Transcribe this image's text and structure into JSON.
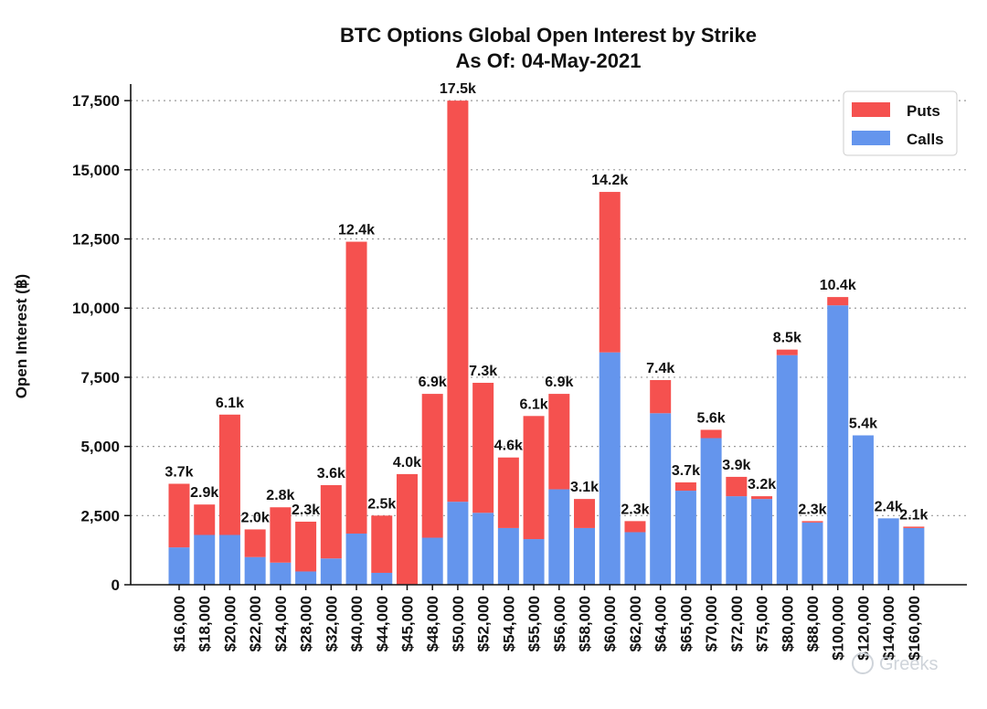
{
  "chart_data": {
    "type": "bar",
    "stacked": true,
    "title": "BTC Options Global Open Interest by Strike",
    "subtitle": "As Of: 04-May-2021",
    "ylabel": "Open Interest (฿)",
    "xlabel": "",
    "ylim": [
      0,
      18000
    ],
    "yticks": [
      0,
      2500,
      5000,
      7500,
      10000,
      12500,
      15000,
      17500
    ],
    "ytick_labels": [
      "0",
      "2,500",
      "5,000",
      "7,500",
      "10,000",
      "12,500",
      "15,000",
      "17,500"
    ],
    "grid": "horizontal dotted",
    "legend_position": "top-right",
    "categories": [
      "$16,000",
      "$18,000",
      "$20,000",
      "$22,000",
      "$24,000",
      "$28,000",
      "$32,000",
      "$40,000",
      "$44,000",
      "$45,000",
      "$48,000",
      "$50,000",
      "$52,000",
      "$54,000",
      "$55,000",
      "$56,000",
      "$58,000",
      "$60,000",
      "$62,000",
      "$64,000",
      "$65,000",
      "$70,000",
      "$72,000",
      "$75,000",
      "$80,000",
      "$88,000",
      "$100,000",
      "$120,000",
      "$140,000",
      "$160,000"
    ],
    "series": [
      {
        "name": "Calls",
        "color": "#6495ed",
        "values": [
          1350,
          1800,
          1800,
          1000,
          800,
          480,
          950,
          1850,
          430,
          20,
          1700,
          3000,
          2600,
          2050,
          1650,
          3450,
          2050,
          8400,
          1900,
          6200,
          3400,
          5300,
          3200,
          3100,
          8300,
          2250,
          10100,
          5400,
          2400,
          2050
        ]
      },
      {
        "name": "Puts",
        "color": "#f5514f",
        "values": [
          2300,
          1100,
          4350,
          1000,
          2000,
          1800,
          2650,
          10550,
          2070,
          3980,
          5200,
          14500,
          4700,
          2550,
          4450,
          3450,
          1050,
          5800,
          400,
          1200,
          300,
          300,
          700,
          100,
          200,
          50,
          300,
          0,
          0,
          50
        ]
      }
    ],
    "total_labels": [
      "3.7k",
      "2.9k",
      "6.1k",
      "2.0k",
      "2.8k",
      "2.3k",
      "3.6k",
      "12.4k",
      "2.5k",
      "4.0k",
      "6.9k",
      "17.5k",
      "7.3k",
      "4.6k",
      "6.1k",
      "6.9k",
      "3.1k",
      "14.2k",
      "2.3k",
      "7.4k",
      "3.7k",
      "5.6k",
      "3.9k",
      "3.2k",
      "8.5k",
      "2.3k",
      "10.4k",
      "5.4k",
      "2.4k",
      "2.1k"
    ]
  },
  "legend": [
    {
      "label": "Puts",
      "color": "#f5514f"
    },
    {
      "label": "Calls",
      "color": "#6495ed"
    }
  ],
  "watermark": {
    "text": "Greeks"
  }
}
